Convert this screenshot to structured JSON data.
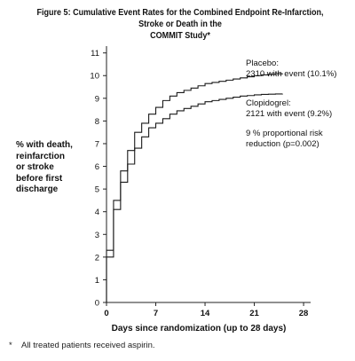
{
  "figure": {
    "title_line1": "Figure 5: Cumulative Event Rates for the Combined Endpoint Re-Infarction, Stroke or Death in the",
    "title_line2": "COMMIT Study*"
  },
  "footnote": {
    "marker": "*",
    "text": "All treated patients received aspirin."
  },
  "chart_data": {
    "type": "line",
    "step": true,
    "title": "Cumulative Event Rates for the Combined Endpoint Re-Infarction, Stroke or Death in the COMMIT Study*",
    "xlabel": "Days since randomization (up to 28 days)",
    "ylabel_lines": [
      "% with death,",
      "reinfarction",
      "or stroke",
      "before first",
      "discharge"
    ],
    "xlim": [
      0,
      29
    ],
    "ylim": [
      0,
      11.3
    ],
    "xticks": [
      0,
      7,
      14,
      21,
      28
    ],
    "yticks": [
      0,
      1,
      2,
      3,
      4,
      5,
      6,
      7,
      8,
      9,
      10,
      11
    ],
    "grid": false,
    "series": [
      {
        "name": "Placebo",
        "annotation_lines": [
          "Placebo:",
          "2310 with event (10.1%)"
        ],
        "x": [
          0,
          1,
          2,
          3,
          4,
          5,
          6,
          7,
          8,
          9,
          10,
          11,
          12,
          13,
          14,
          15,
          16,
          17,
          18,
          19,
          20,
          21,
          22,
          23,
          24,
          25
        ],
        "y": [
          2.3,
          4.5,
          5.8,
          6.7,
          7.5,
          7.9,
          8.3,
          8.6,
          8.9,
          9.1,
          9.25,
          9.35,
          9.45,
          9.55,
          9.65,
          9.7,
          9.75,
          9.8,
          9.85,
          9.9,
          9.95,
          10.0,
          10.03,
          10.06,
          10.08,
          10.1
        ]
      },
      {
        "name": "Clopidogrel",
        "annotation_lines": [
          "Clopidogrel:",
          "2121 with event (9.2%)"
        ],
        "x": [
          0,
          1,
          2,
          3,
          4,
          5,
          6,
          7,
          8,
          9,
          10,
          11,
          12,
          13,
          14,
          15,
          16,
          17,
          18,
          19,
          20,
          21,
          22,
          23,
          24,
          25
        ],
        "y": [
          2.0,
          4.1,
          5.3,
          6.1,
          6.8,
          7.3,
          7.7,
          7.9,
          8.1,
          8.3,
          8.45,
          8.55,
          8.65,
          8.75,
          8.85,
          8.9,
          8.95,
          9.0,
          9.05,
          9.1,
          9.12,
          9.15,
          9.17,
          9.18,
          9.19,
          9.2
        ]
      }
    ],
    "annotations": [
      {
        "lines": [
          "9 % proportional risk",
          "reduction (p=0.002)"
        ]
      }
    ]
  }
}
